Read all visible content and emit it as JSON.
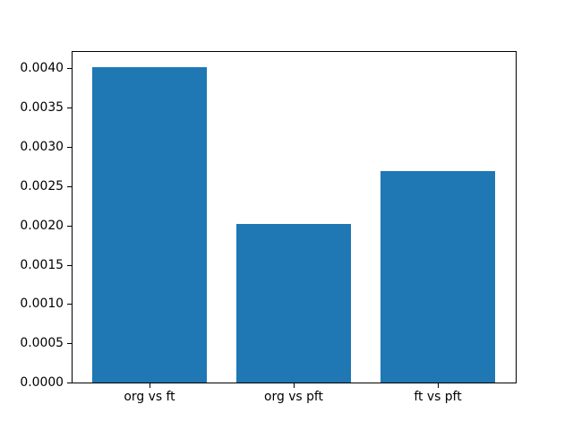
{
  "figure": {
    "background_color": "#ffffff",
    "frame_color": "#000000",
    "text_color": "#000000"
  },
  "chart_data": {
    "type": "bar",
    "title": "",
    "xlabel": "",
    "ylabel": "",
    "categories": [
      "org vs ft",
      "org vs pft",
      "ft vs pft"
    ],
    "values": [
      0.00401,
      0.00202,
      0.00269
    ],
    "bar_color": "#1f77b4",
    "bar_width": 0.8,
    "xlim": [
      -0.54,
      2.54
    ],
    "ylim": [
      0,
      0.00421
    ],
    "yticks": [
      0.0,
      0.0005,
      0.001,
      0.0015,
      0.002,
      0.0025,
      0.003,
      0.0035,
      0.004
    ],
    "ytick_labels": [
      "0.0000",
      "0.0005",
      "0.0010",
      "0.0015",
      "0.0020",
      "0.0025",
      "0.0030",
      "0.0035",
      "0.0040"
    ],
    "grid": false,
    "legend": null
  }
}
